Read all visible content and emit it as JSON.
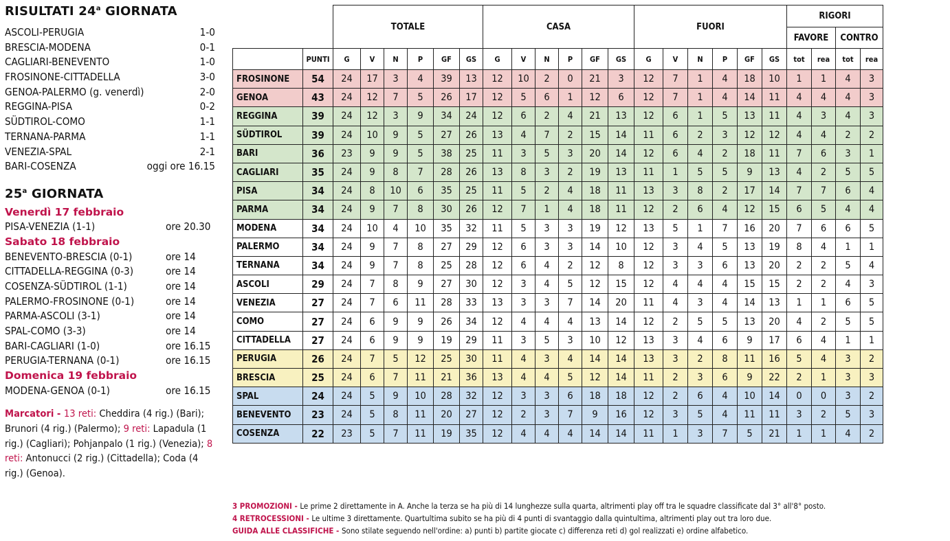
{
  "results": {
    "title_pre": "RISULTATI 24",
    "title_sup": "a",
    "title_post": " GIORNATA",
    "rows": [
      {
        "match": "ASCOLI-PERUGIA",
        "score": "1-0"
      },
      {
        "match": "BRESCIA-MODENA",
        "score": "0-1"
      },
      {
        "match": "CAGLIARI-BENEVENTO",
        "score": "1-0"
      },
      {
        "match": "FROSINONE-CITTADELLA",
        "score": "3-0"
      },
      {
        "match": "GENOA-PALERMO (g. venerdì)",
        "score": "2-0"
      },
      {
        "match": "REGGINA-PISA",
        "score": "0-2"
      },
      {
        "match": "SÜDTIROL-COMO",
        "score": "1-1"
      },
      {
        "match": "TERNANA-PARMA",
        "score": "1-1"
      },
      {
        "match": "VENEZIA-SPAL",
        "score": "2-1"
      },
      {
        "match": "BARI-COSENZA",
        "score": "oggi ore 16.15"
      }
    ]
  },
  "next": {
    "title_pre": "25",
    "title_sup": "a",
    "title_post": " GIORNATA",
    "days": [
      {
        "label": "Venerdì 17 febbraio",
        "matches": [
          {
            "match": "PISA-VENEZIA (1-1)",
            "time": "ore 20.30"
          }
        ]
      },
      {
        "label": "Sabato 18 febbraio",
        "matches": [
          {
            "match": "BENEVENTO-BRESCIA (0-1)",
            "time": "ore 14"
          },
          {
            "match": "CITTADELLA-REGGINA (0-3)",
            "time": "ore 14"
          },
          {
            "match": "COSENZA-SÜDTIROL (1-1)",
            "time": "ore 14"
          },
          {
            "match": "PALERMO-FROSINONE (0-1)",
            "time": "ore 14"
          },
          {
            "match": "PARMA-ASCOLI (3-1)",
            "time": "ore 14"
          },
          {
            "match": "SPAL-COMO (3-3)",
            "time": "ore 14"
          },
          {
            "match": "BARI-CAGLIARI (1-0)",
            "time": "ore 16.15"
          },
          {
            "match": "PERUGIA-TERNANA (0-1)",
            "time": "ore 16.15"
          }
        ]
      },
      {
        "label": "Domenica 19 febbraio",
        "matches": [
          {
            "match": "MODENA-GENOA (0-1)",
            "time": "ore 16.15"
          }
        ]
      }
    ]
  },
  "scorers": {
    "label": "Marcatori - ",
    "groups": [
      {
        "count": "13 reti: ",
        "names": "Cheddira (4 rig.) (Bari); Brunori (4 rig.) (Palermo);"
      },
      {
        "count": "9 reti: ",
        "names": "Lapadula (1 rig.) (Cagliari); Pohjanpalo (1 rig.) (Venezia);"
      },
      {
        "count": "8 reti: ",
        "names": "Antonucci (2 rig.) (Cittadella); Coda (4 rig.) (Genoa)."
      }
    ]
  },
  "table": {
    "groups": {
      "totale": "TOTALE",
      "casa": "CASA",
      "fuori": "FUORI",
      "rigori": "RIGORI",
      "favore": "FAVORE",
      "contro": "CONTRO"
    },
    "cols": [
      "PUNTI",
      "G",
      "V",
      "N",
      "P",
      "GF",
      "GS",
      "G",
      "V",
      "N",
      "P",
      "GF",
      "GS",
      "G",
      "V",
      "N",
      "P",
      "GF",
      "GS",
      "tot",
      "rea",
      "tot",
      "rea"
    ],
    "zone_colors": {
      "promo": "#f2cccb",
      "playoff": "#d4e6cb",
      "none": "#ffffff",
      "playout": "#f8f1c0",
      "releg": "#c8dcef"
    },
    "rows": [
      {
        "team": "FROSINONE",
        "zone": "promo",
        "vals": [
          "54",
          "24",
          "17",
          "3",
          "4",
          "39",
          "13",
          "12",
          "10",
          "2",
          "0",
          "21",
          "3",
          "12",
          "7",
          "1",
          "4",
          "18",
          "10",
          "1",
          "1",
          "4",
          "3"
        ]
      },
      {
        "team": "GENOA",
        "zone": "promo",
        "vals": [
          "43",
          "24",
          "12",
          "7",
          "5",
          "26",
          "17",
          "12",
          "5",
          "6",
          "1",
          "12",
          "6",
          "12",
          "7",
          "1",
          "4",
          "14",
          "11",
          "4",
          "4",
          "4",
          "3"
        ]
      },
      {
        "team": "REGGINA",
        "zone": "playoff",
        "vals": [
          "39",
          "24",
          "12",
          "3",
          "9",
          "34",
          "24",
          "12",
          "6",
          "2",
          "4",
          "21",
          "13",
          "12",
          "6",
          "1",
          "5",
          "13",
          "11",
          "4",
          "3",
          "4",
          "3"
        ]
      },
      {
        "team": "SÜDTIROL",
        "zone": "playoff",
        "vals": [
          "39",
          "24",
          "10",
          "9",
          "5",
          "27",
          "26",
          "13",
          "4",
          "7",
          "2",
          "15",
          "14",
          "11",
          "6",
          "2",
          "3",
          "12",
          "12",
          "4",
          "4",
          "2",
          "2"
        ]
      },
      {
        "team": "BARI",
        "zone": "playoff",
        "vals": [
          "36",
          "23",
          "9",
          "9",
          "5",
          "38",
          "25",
          "11",
          "3",
          "5",
          "3",
          "20",
          "14",
          "12",
          "6",
          "4",
          "2",
          "18",
          "11",
          "7",
          "6",
          "3",
          "1"
        ]
      },
      {
        "team": "CAGLIARI",
        "zone": "playoff",
        "vals": [
          "35",
          "24",
          "9",
          "8",
          "7",
          "28",
          "26",
          "13",
          "8",
          "3",
          "2",
          "19",
          "13",
          "11",
          "1",
          "5",
          "5",
          "9",
          "13",
          "4",
          "2",
          "5",
          "5"
        ]
      },
      {
        "team": "PISA",
        "zone": "playoff",
        "vals": [
          "34",
          "24",
          "8",
          "10",
          "6",
          "35",
          "25",
          "11",
          "5",
          "2",
          "4",
          "18",
          "11",
          "13",
          "3",
          "8",
          "2",
          "17",
          "14",
          "7",
          "7",
          "6",
          "4"
        ]
      },
      {
        "team": "PARMA",
        "zone": "playoff",
        "vals": [
          "34",
          "24",
          "9",
          "7",
          "8",
          "30",
          "26",
          "12",
          "7",
          "1",
          "4",
          "18",
          "11",
          "12",
          "2",
          "6",
          "4",
          "12",
          "15",
          "6",
          "5",
          "4",
          "4"
        ]
      },
      {
        "team": "MODENA",
        "zone": "none",
        "vals": [
          "34",
          "24",
          "10",
          "4",
          "10",
          "35",
          "32",
          "11",
          "5",
          "3",
          "3",
          "19",
          "12",
          "13",
          "5",
          "1",
          "7",
          "16",
          "20",
          "7",
          "6",
          "6",
          "5"
        ]
      },
      {
        "team": "PALERMO",
        "zone": "none",
        "vals": [
          "34",
          "24",
          "9",
          "7",
          "8",
          "27",
          "29",
          "12",
          "6",
          "3",
          "3",
          "14",
          "10",
          "12",
          "3",
          "4",
          "5",
          "13",
          "19",
          "8",
          "4",
          "1",
          "1"
        ]
      },
      {
        "team": "TERNANA",
        "zone": "none",
        "vals": [
          "34",
          "24",
          "9",
          "7",
          "8",
          "25",
          "28",
          "12",
          "6",
          "4",
          "2",
          "12",
          "8",
          "12",
          "3",
          "3",
          "6",
          "13",
          "20",
          "2",
          "2",
          "5",
          "4"
        ]
      },
      {
        "team": "ASCOLI",
        "zone": "none",
        "vals": [
          "29",
          "24",
          "7",
          "8",
          "9",
          "27",
          "30",
          "12",
          "3",
          "4",
          "5",
          "12",
          "15",
          "12",
          "4",
          "4",
          "4",
          "15",
          "15",
          "2",
          "2",
          "4",
          "3"
        ]
      },
      {
        "team": "VENEZIA",
        "zone": "none",
        "vals": [
          "27",
          "24",
          "7",
          "6",
          "11",
          "28",
          "33",
          "13",
          "3",
          "3",
          "7",
          "14",
          "20",
          "11",
          "4",
          "3",
          "4",
          "14",
          "13",
          "1",
          "1",
          "6",
          "5"
        ]
      },
      {
        "team": "COMO",
        "zone": "none",
        "vals": [
          "27",
          "24",
          "6",
          "9",
          "9",
          "26",
          "34",
          "12",
          "4",
          "4",
          "4",
          "13",
          "14",
          "12",
          "2",
          "5",
          "5",
          "13",
          "20",
          "4",
          "2",
          "5",
          "5"
        ]
      },
      {
        "team": "CITTADELLA",
        "zone": "none",
        "vals": [
          "27",
          "24",
          "6",
          "9",
          "9",
          "19",
          "29",
          "11",
          "3",
          "5",
          "3",
          "10",
          "12",
          "13",
          "3",
          "4",
          "6",
          "9",
          "17",
          "6",
          "4",
          "1",
          "1"
        ]
      },
      {
        "team": "PERUGIA",
        "zone": "playout",
        "vals": [
          "26",
          "24",
          "7",
          "5",
          "12",
          "25",
          "30",
          "11",
          "4",
          "3",
          "4",
          "14",
          "14",
          "13",
          "3",
          "2",
          "8",
          "11",
          "16",
          "5",
          "4",
          "3",
          "2"
        ]
      },
      {
        "team": "BRESCIA",
        "zone": "playout",
        "vals": [
          "25",
          "24",
          "6",
          "7",
          "11",
          "21",
          "36",
          "13",
          "4",
          "4",
          "5",
          "12",
          "14",
          "11",
          "2",
          "3",
          "6",
          "9",
          "22",
          "2",
          "1",
          "3",
          "3"
        ]
      },
      {
        "team": "SPAL",
        "zone": "releg",
        "vals": [
          "24",
          "24",
          "5",
          "9",
          "10",
          "28",
          "32",
          "12",
          "3",
          "3",
          "6",
          "18",
          "18",
          "12",
          "2",
          "6",
          "4",
          "10",
          "14",
          "0",
          "0",
          "3",
          "2"
        ]
      },
      {
        "team": "BENEVENTO",
        "zone": "releg",
        "vals": [
          "23",
          "24",
          "5",
          "8",
          "11",
          "20",
          "27",
          "12",
          "2",
          "3",
          "7",
          "9",
          "16",
          "12",
          "3",
          "5",
          "4",
          "11",
          "11",
          "3",
          "2",
          "5",
          "3"
        ]
      },
      {
        "team": "COSENZA",
        "zone": "releg",
        "vals": [
          "22",
          "23",
          "5",
          "7",
          "11",
          "19",
          "35",
          "12",
          "4",
          "4",
          "4",
          "14",
          "14",
          "11",
          "1",
          "3",
          "7",
          "5",
          "21",
          "1",
          "1",
          "4",
          "2"
        ]
      }
    ]
  },
  "notes": [
    {
      "key": "3 PROMOZIONI - ",
      "text": "Le prime 2 direttamente in A. Anche la terza se ha più di 14 lunghezze sulla quarta, altrimenti play off tra le squadre classificate dal 3° all'8° posto."
    },
    {
      "key": "4 RETROCESSIONI - ",
      "text": "Le ultime 3 direttamente. Quartultima subito se ha più di 4 punti di svantaggio dalla quintultima, altrimenti play out tra loro due."
    },
    {
      "key": "GUIDA ALLE CLASSIFICHE - ",
      "text": "Sono stilate seguendo nell'ordine: a) punti b) partite giocate c) differenza reti d) gol realizzati e) ordine alfabetico."
    }
  ]
}
